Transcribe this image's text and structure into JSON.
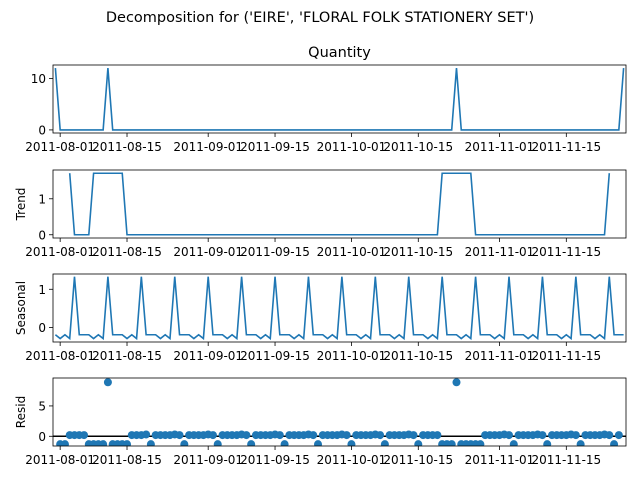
{
  "figure": {
    "suptitle": "Decomposition for ('EIRE', 'FLORAL FOLK STATIONERY SET')"
  },
  "colors": {
    "line": "#1f77b4",
    "axis": "#000000",
    "background": "#ffffff"
  },
  "chart_data": [
    {
      "type": "line",
      "title": "Quantity",
      "ylabel": "",
      "xlabel": "",
      "ylim": [
        -0.6,
        12.6
      ],
      "yticks": [
        0,
        10
      ],
      "xlim": [
        -0.5,
        119.5
      ],
      "xticks": [
        "2011-08-01",
        "2011-08-15",
        "2011-09-01",
        "2011-09-15",
        "2011-10-01",
        "2011-10-15",
        "2011-11-01",
        "2011-11-15"
      ],
      "series": [
        {
          "points": [
            [
              0,
              12
            ],
            [
              1,
              0
            ],
            [
              10,
              0
            ],
            [
              11,
              12
            ],
            [
              12,
              0
            ],
            [
              83,
              0
            ],
            [
              84,
              12
            ],
            [
              85,
              0
            ],
            [
              118,
              0
            ],
            [
              119,
              12
            ]
          ]
        }
      ]
    },
    {
      "type": "line",
      "title": "",
      "ylabel": "Trend",
      "xlabel": "",
      "ylim": [
        -0.09,
        1.8
      ],
      "yticks": [
        0,
        1
      ],
      "xlim": [
        -0.5,
        119.5
      ],
      "xticks": [
        "2011-08-01",
        "2011-08-15",
        "2011-09-01",
        "2011-09-15",
        "2011-10-01",
        "2011-10-15",
        "2011-11-01",
        "2011-11-15"
      ],
      "series": [
        {
          "points": [
            [
              3,
              1.71
            ],
            [
              4,
              0
            ],
            [
              7,
              0
            ],
            [
              8,
              1.71
            ],
            [
              14,
              1.71
            ],
            [
              15,
              0
            ],
            [
              80,
              0
            ],
            [
              81,
              1.71
            ],
            [
              87,
              1.71
            ],
            [
              88,
              0
            ],
            [
              115,
              0
            ],
            [
              116,
              1.71
            ]
          ]
        }
      ]
    },
    {
      "type": "line",
      "title": "",
      "ylabel": "Seasonal",
      "xlabel": "",
      "ylim": [
        -0.38,
        1.4
      ],
      "yticks": [
        0,
        1
      ],
      "xlim": [
        -0.5,
        119.5
      ],
      "seasonal_pattern": [
        1.33,
        -0.19,
        -0.19,
        -0.19,
        -0.29,
        -0.19,
        -0.29
      ],
      "seasonal_peak_offset": 4,
      "xticks": [
        "2011-08-01",
        "2011-08-15",
        "2011-09-01",
        "2011-09-15",
        "2011-10-01",
        "2011-10-15",
        "2011-11-01",
        "2011-11-15"
      ]
    },
    {
      "type": "scatter",
      "title": "",
      "ylabel": "Resid",
      "xlabel": "",
      "ylim": [
        -1.6,
        9.6
      ],
      "yticks": [
        0,
        5
      ],
      "xlim": [
        -0.5,
        119.5
      ],
      "baseline": 0,
      "xticks": [
        "2011-08-01",
        "2011-08-15",
        "2011-09-01",
        "2011-09-15",
        "2011-10-01",
        "2011-10-15",
        "2011-11-01",
        "2011-11-15"
      ],
      "points": [
        [
          1,
          -1.3
        ],
        [
          2,
          -1.3
        ],
        [
          3,
          0.2
        ],
        [
          4,
          0.2
        ],
        [
          5,
          0.2
        ],
        [
          6,
          0.2
        ],
        [
          7,
          -1.3
        ],
        [
          8,
          -1.3
        ],
        [
          9,
          -1.3
        ],
        [
          10,
          -1.3
        ],
        [
          11,
          8.9
        ],
        [
          12,
          -1.3
        ],
        [
          13,
          -1.3
        ],
        [
          14,
          -1.3
        ],
        [
          15,
          -1.3
        ],
        [
          16,
          0.2
        ],
        [
          17,
          0.2
        ],
        [
          18,
          0.2
        ],
        [
          19,
          0.3
        ],
        [
          20,
          -1.3
        ],
        [
          21,
          0.2
        ],
        [
          22,
          0.2
        ],
        [
          23,
          0.2
        ],
        [
          24,
          0.2
        ],
        [
          25,
          0.3
        ],
        [
          26,
          0.2
        ],
        [
          27,
          -1.3
        ],
        [
          28,
          0.2
        ],
        [
          29,
          0.2
        ],
        [
          30,
          0.2
        ],
        [
          31,
          0.2
        ],
        [
          32,
          0.3
        ],
        [
          33,
          0.2
        ],
        [
          34,
          -1.3
        ],
        [
          35,
          0.2
        ],
        [
          36,
          0.2
        ],
        [
          37,
          0.2
        ],
        [
          38,
          0.2
        ],
        [
          39,
          0.3
        ],
        [
          40,
          0.2
        ],
        [
          41,
          -1.3
        ],
        [
          42,
          0.2
        ],
        [
          43,
          0.2
        ],
        [
          44,
          0.2
        ],
        [
          45,
          0.2
        ],
        [
          46,
          0.3
        ],
        [
          47,
          0.2
        ],
        [
          48,
          -1.3
        ],
        [
          49,
          0.2
        ],
        [
          50,
          0.2
        ],
        [
          51,
          0.2
        ],
        [
          52,
          0.2
        ],
        [
          53,
          0.3
        ],
        [
          54,
          0.2
        ],
        [
          55,
          -1.3
        ],
        [
          56,
          0.2
        ],
        [
          57,
          0.2
        ],
        [
          58,
          0.2
        ],
        [
          59,
          0.2
        ],
        [
          60,
          0.3
        ],
        [
          61,
          0.2
        ],
        [
          62,
          -1.3
        ],
        [
          63,
          0.2
        ],
        [
          64,
          0.2
        ],
        [
          65,
          0.2
        ],
        [
          66,
          0.2
        ],
        [
          67,
          0.3
        ],
        [
          68,
          0.2
        ],
        [
          69,
          -1.3
        ],
        [
          70,
          0.2
        ],
        [
          71,
          0.2
        ],
        [
          72,
          0.2
        ],
        [
          73,
          0.2
        ],
        [
          74,
          0.3
        ],
        [
          75,
          0.2
        ],
        [
          76,
          -1.3
        ],
        [
          77,
          0.2
        ],
        [
          78,
          0.2
        ],
        [
          79,
          0.2
        ],
        [
          80,
          0.2
        ],
        [
          81,
          -1.3
        ],
        [
          82,
          -1.3
        ],
        [
          83,
          -1.3
        ],
        [
          84,
          8.9
        ],
        [
          85,
          -1.3
        ],
        [
          86,
          -1.3
        ],
        [
          87,
          -1.3
        ],
        [
          88,
          -1.3
        ],
        [
          89,
          -1.3
        ],
        [
          90,
          0.2
        ],
        [
          91,
          0.2
        ],
        [
          92,
          0.2
        ],
        [
          93,
          0.2
        ],
        [
          94,
          0.3
        ],
        [
          95,
          0.2
        ],
        [
          96,
          -1.3
        ],
        [
          97,
          0.2
        ],
        [
          98,
          0.2
        ],
        [
          99,
          0.2
        ],
        [
          100,
          0.2
        ],
        [
          101,
          0.3
        ],
        [
          102,
          0.2
        ],
        [
          103,
          -1.3
        ],
        [
          104,
          0.2
        ],
        [
          105,
          0.2
        ],
        [
          106,
          0.2
        ],
        [
          107,
          0.2
        ],
        [
          108,
          0.3
        ],
        [
          109,
          0.2
        ],
        [
          110,
          -1.3
        ],
        [
          111,
          0.2
        ],
        [
          112,
          0.2
        ],
        [
          113,
          0.2
        ],
        [
          114,
          0.2
        ],
        [
          115,
          0.3
        ],
        [
          116,
          0.2
        ],
        [
          117,
          -1.3
        ],
        [
          118,
          0.2
        ]
      ]
    }
  ]
}
